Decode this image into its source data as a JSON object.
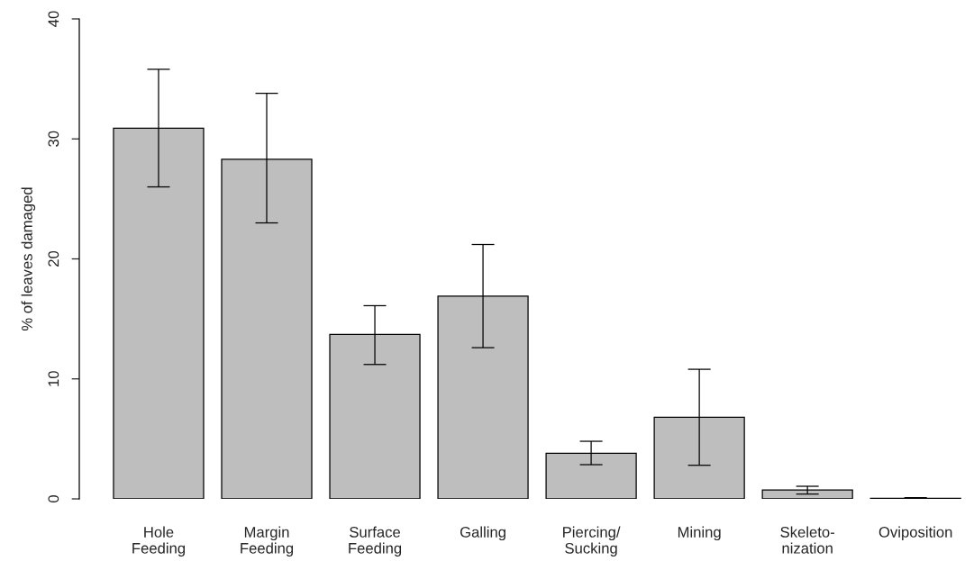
{
  "chart_data": {
    "type": "bar",
    "ylabel": "% of leaves damaged",
    "categories": [
      "Hole\nFeeding",
      "Margin\nFeeding",
      "Surface\nFeeding",
      "Galling",
      "Piercing/\nSucking",
      "Mining",
      "Skeleto-\nnization",
      "Oviposition"
    ],
    "values": [
      30.9,
      28.3,
      13.7,
      16.9,
      3.8,
      6.8,
      0.75,
      0.05
    ],
    "errors": [
      [
        26.0,
        35.8
      ],
      [
        23.0,
        33.8
      ],
      [
        11.2,
        16.1
      ],
      [
        12.6,
        21.2
      ],
      [
        2.85,
        4.8
      ],
      [
        2.8,
        10.8
      ],
      [
        0.4,
        1.05
      ],
      [
        0.0,
        0.1
      ]
    ],
    "color": "#bebebe",
    "ylim": [
      0,
      40
    ],
    "yticks": [
      0,
      10,
      20,
      30,
      40
    ],
    "grid": false
  }
}
